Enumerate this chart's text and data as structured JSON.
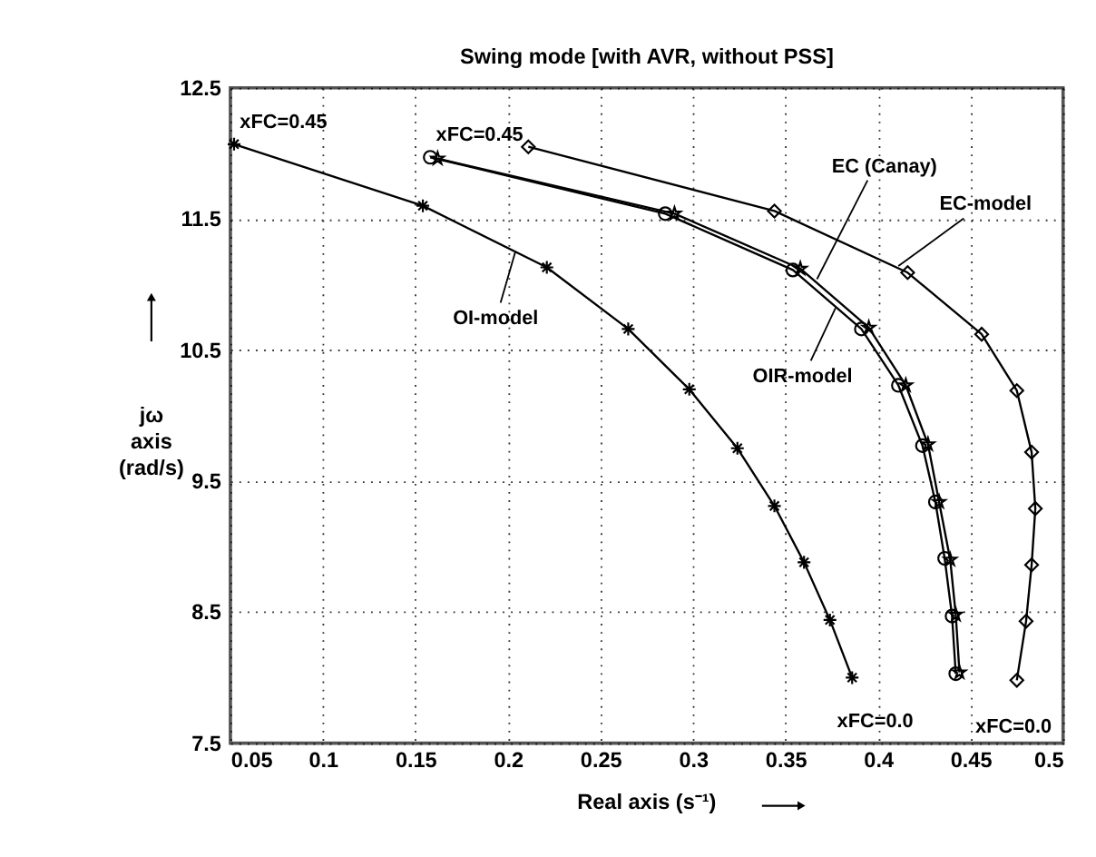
{
  "chart_data": {
    "type": "line",
    "title": "Swing mode [with AVR, without PSS]",
    "xlabel": "Real axis (s⁻¹)",
    "ylabel": "jω axis (rad/s)",
    "xlim": [
      0.05,
      0.5
    ],
    "xticks": [
      0.05,
      0.1,
      0.15,
      0.2,
      0.25,
      0.3,
      0.35,
      0.4,
      0.45,
      0.5
    ],
    "ylim": [
      7.5,
      12.5
    ],
    "yticks": [
      7.5,
      8.5,
      9.5,
      10.5,
      11.5,
      12.5
    ],
    "grid": true,
    "line_style": "solid",
    "series": [
      {
        "color": "#000000",
        "marker": "cross",
        "x": [
          0.052,
          0.154,
          0.221,
          0.265,
          0.298,
          0.324,
          0.344,
          0.36,
          0.374,
          0.386
        ],
        "values": [
          12.07,
          11.6,
          11.13,
          10.66,
          10.2,
          9.75,
          9.31,
          8.88,
          8.44,
          8.0
        ]
      },
      {
        "color": "#000000",
        "marker": "circle",
        "x": [
          0.158,
          0.285,
          0.354,
          0.391,
          0.411,
          0.424,
          0.431,
          0.436,
          0.44,
          0.442
        ],
        "values": [
          11.97,
          11.54,
          11.11,
          10.66,
          10.23,
          9.77,
          9.34,
          8.91,
          8.47,
          8.03
        ]
      },
      {
        "color": "#000000",
        "marker": "star",
        "x": [
          0.162,
          0.29,
          0.358,
          0.395,
          0.415,
          0.427,
          0.433,
          0.439,
          0.442,
          0.444
        ],
        "values": [
          11.96,
          11.54,
          11.12,
          10.67,
          10.23,
          9.78,
          9.34,
          8.9,
          8.48,
          8.04
        ]
      },
      {
        "color": "#000000",
        "marker": "diamond",
        "x": [
          0.211,
          0.344,
          0.416,
          0.456,
          0.475,
          0.483,
          0.485,
          0.483,
          0.48,
          0.475
        ],
        "values": [
          12.05,
          11.56,
          11.09,
          10.62,
          10.19,
          9.72,
          9.29,
          8.86,
          8.43,
          7.98
        ]
      }
    ],
    "annotations": [
      {
        "text": "xFC=0.45",
        "x": 0.052,
        "y": 12.07
      },
      {
        "text": "xFC=0.45",
        "x": 0.158,
        "y": 11.97
      },
      {
        "text": "xFC=0.0",
        "x": 0.386,
        "y": 8.0
      },
      {
        "text": "xFC=0.0",
        "x": 0.475,
        "y": 7.98
      },
      {
        "text": "OI-model",
        "x": 0.204,
        "y": 11.25
      },
      {
        "text": "EC (Canay)",
        "x": 0.367,
        "y": 11.04
      },
      {
        "text": "EC-model",
        "x": 0.411,
        "y": 11.14
      },
      {
        "text": "OIR-model",
        "x": 0.377,
        "y": 10.82
      }
    ]
  }
}
